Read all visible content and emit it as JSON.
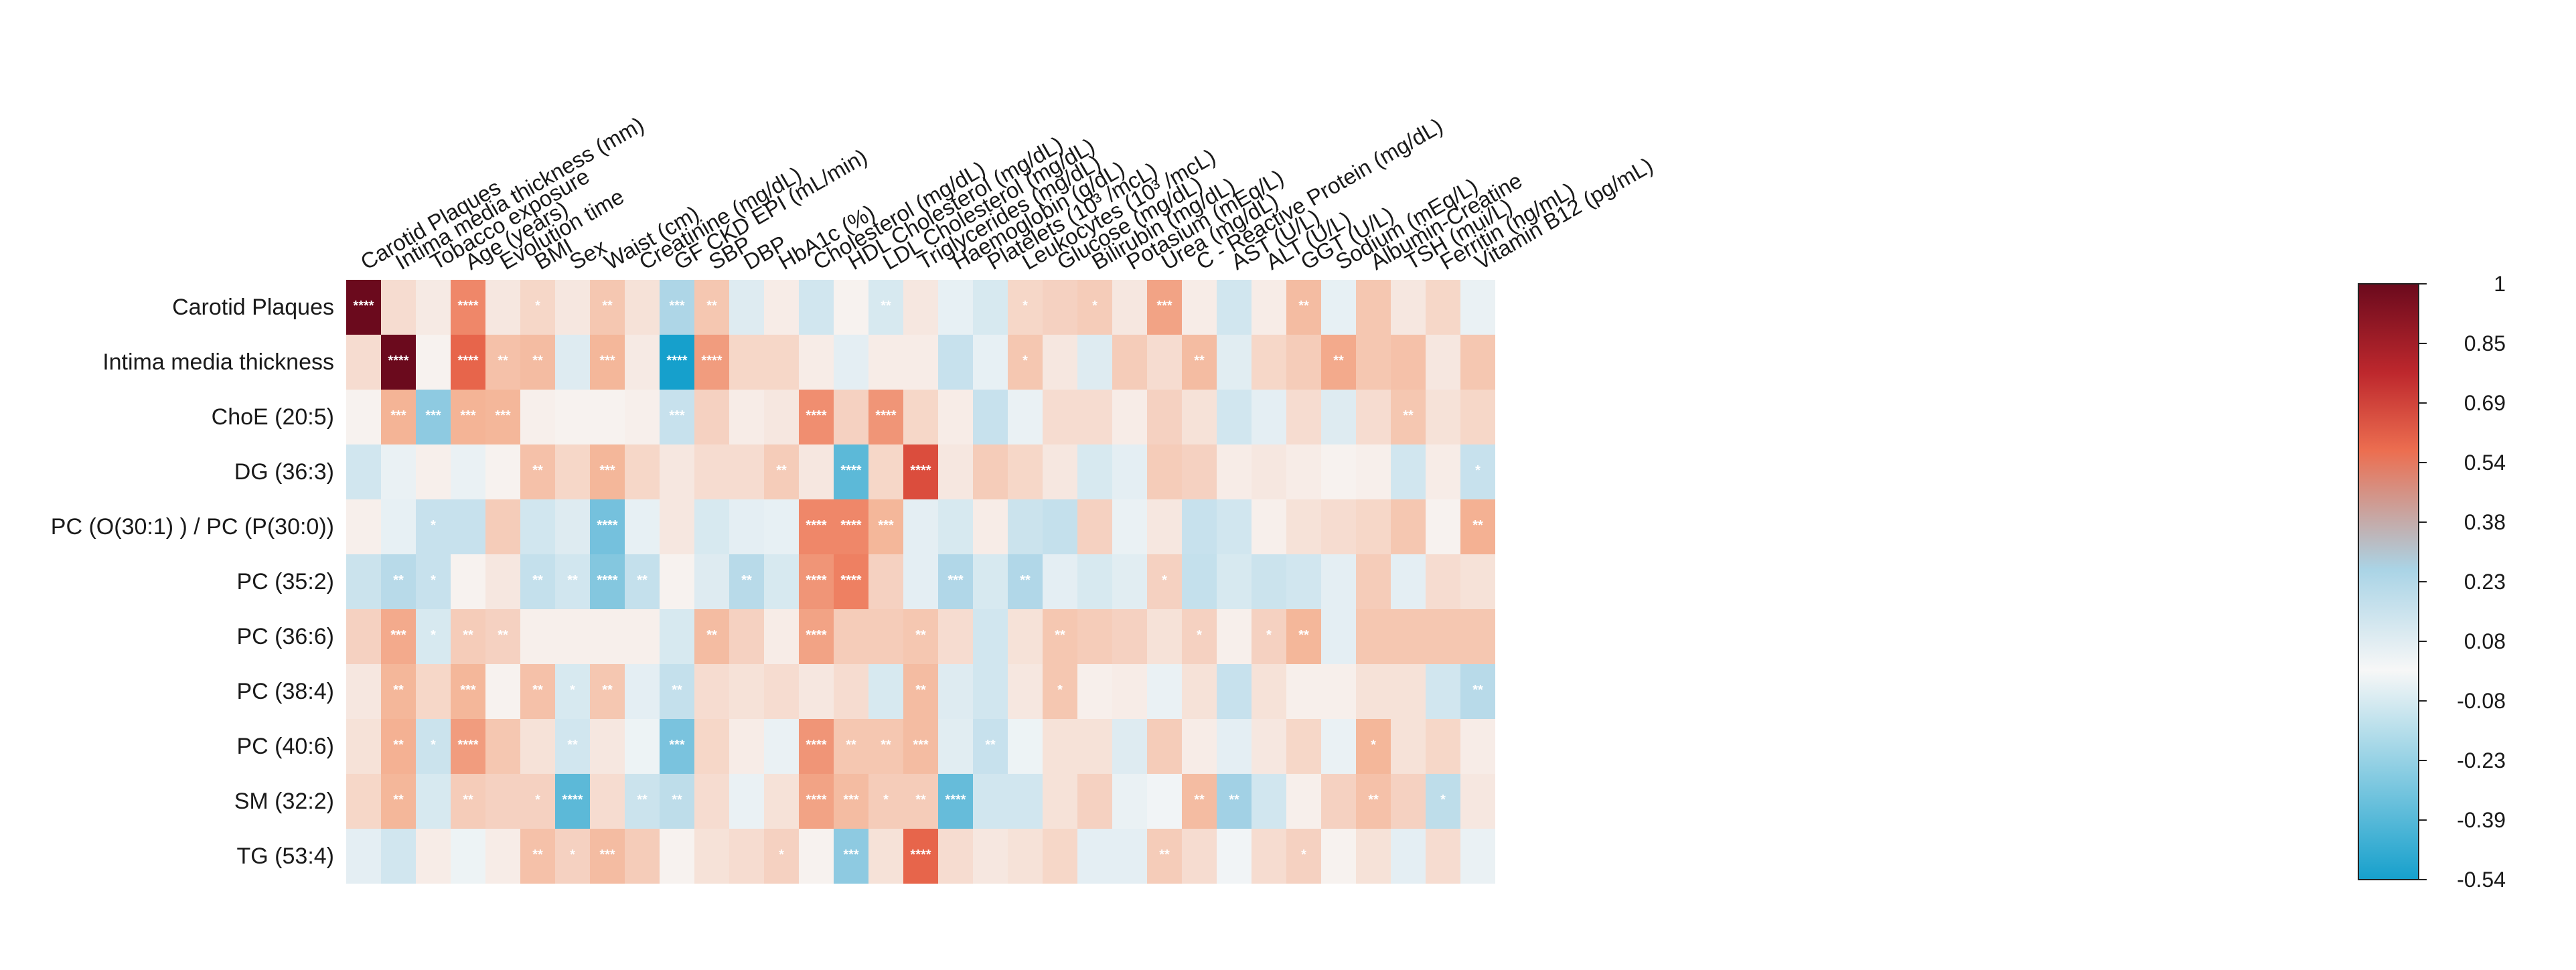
{
  "chart_data": {
    "type": "heatmap",
    "title": "",
    "xlabel": "",
    "ylabel": "",
    "color_scale": {
      "min": -0.54,
      "max": 1,
      "negative_color": "#16a0cc",
      "mid_color": "#f7f7f7",
      "positive_color": "#6b0a1d",
      "ticks": [
        "1",
        "0.85",
        "0.69",
        "0.54",
        "0.38",
        "0.23",
        "0.08",
        "-0.08",
        "-0.23",
        "-0.39",
        "-0.54"
      ]
    },
    "legend_placement": "right",
    "rows": [
      "Carotid Plaques",
      "Intima media thickness",
      "ChoE (20:5)",
      "DG (36:3)",
      "PC (O(30:1) ) / PC (P(30:0))",
      "PC (35:2)",
      "PC (36:6)",
      "PC (38:4)",
      "PC (40:6)",
      "SM (32:2)",
      "TG (53:4)"
    ],
    "columns": [
      "Carotid Plaques",
      "Intima media thickness (mm)",
      "Tobacco exposure",
      "Age (years)",
      "Evolution time",
      "BMI",
      "Sex",
      "Waist (cm)",
      "Creatinine (mg/dL)",
      "GF CKD EPI (mL/min)",
      "SBP",
      "DBP",
      "HbA1c (%)",
      "Cholesterol (mg/dL)",
      "HDL Cholesterol (mg/dL)",
      "LDL Cholesterol (mg/dL)",
      "Triglycerides (mg/dL)",
      "Haemoglobin (g/dL)",
      "Platelets (10³ /mcL)",
      "Leukocytes (10³ /mcL)",
      "Glucose (mg/dL)",
      "Bilirubin (mg/dL)",
      "Potasium (mEq/L)",
      "Urea (mg/dL)",
      "C - Reactive Protein (mg/dL)",
      "AST (U/L)",
      "ALT (U/L)",
      "GGT (U/L)",
      "Sodium (mEq/L)",
      "Albumin-Creatine",
      "TSH (mui/L)",
      "Ferritin (ng/mL)",
      "Vitamin B12 (pg/mL)"
    ],
    "values": [
      [
        1.0,
        0.1,
        0.05,
        0.38,
        0.06,
        0.12,
        0.06,
        0.18,
        0.08,
        -0.23,
        0.18,
        -0.08,
        0.04,
        -0.12,
        0.02,
        -0.1,
        0.06,
        -0.05,
        -0.1,
        0.12,
        0.14,
        0.16,
        0.06,
        0.3,
        0.04,
        -0.12,
        0.04,
        0.22,
        -0.05,
        0.18,
        0.06,
        0.12,
        -0.04
      ],
      [
        0.1,
        1.0,
        0.02,
        0.48,
        0.2,
        0.22,
        -0.08,
        0.24,
        0.05,
        -0.54,
        0.32,
        0.12,
        0.12,
        0.04,
        -0.06,
        0.04,
        0.04,
        -0.15,
        -0.05,
        0.18,
        0.06,
        -0.08,
        0.16,
        0.1,
        0.22,
        -0.07,
        0.12,
        0.16,
        0.28,
        0.18,
        0.2,
        0.06,
        0.18
      ],
      [
        0.02,
        0.25,
        -0.3,
        0.25,
        0.24,
        0.03,
        0.02,
        0.02,
        0.03,
        -0.15,
        0.14,
        0.04,
        0.06,
        0.36,
        0.14,
        0.34,
        0.12,
        0.04,
        -0.15,
        -0.04,
        0.1,
        0.1,
        0.04,
        0.14,
        0.08,
        -0.12,
        -0.06,
        0.1,
        -0.08,
        0.1,
        0.18,
        0.08,
        0.12
      ],
      [
        -0.12,
        -0.04,
        0.03,
        -0.04,
        0.02,
        0.2,
        0.12,
        0.24,
        0.12,
        0.06,
        0.1,
        0.1,
        0.16,
        0.06,
        -0.4,
        0.12,
        0.56,
        0.06,
        0.16,
        0.12,
        0.06,
        -0.1,
        -0.06,
        0.16,
        0.14,
        0.04,
        0.06,
        0.04,
        0.02,
        0.03,
        -0.12,
        0.04,
        -0.15
      ],
      [
        0.03,
        -0.05,
        -0.15,
        -0.15,
        0.16,
        -0.12,
        -0.08,
        -0.35,
        -0.05,
        0.06,
        -0.1,
        -0.06,
        -0.05,
        0.38,
        0.38,
        0.24,
        -0.06,
        -0.1,
        0.04,
        -0.14,
        -0.16,
        0.14,
        -0.04,
        0.06,
        -0.15,
        -0.12,
        0.03,
        0.08,
        0.1,
        0.12,
        0.18,
        0.02,
        0.26
      ],
      [
        -0.14,
        -0.2,
        -0.15,
        0.02,
        0.06,
        -0.16,
        -0.12,
        -0.32,
        -0.16,
        0.02,
        -0.08,
        -0.2,
        -0.1,
        0.34,
        0.4,
        0.14,
        -0.06,
        -0.22,
        -0.1,
        -0.22,
        -0.06,
        -0.1,
        -0.07,
        0.14,
        -0.16,
        -0.1,
        -0.14,
        -0.12,
        -0.06,
        0.16,
        -0.06,
        0.1,
        0.08
      ],
      [
        0.14,
        0.28,
        -0.1,
        0.16,
        0.14,
        0.03,
        0.03,
        0.03,
        0.03,
        -0.1,
        0.22,
        0.14,
        0.04,
        0.3,
        0.16,
        0.16,
        0.18,
        0.1,
        -0.12,
        0.08,
        0.18,
        0.16,
        0.14,
        0.08,
        0.14,
        0.03,
        0.14,
        0.24,
        -0.06,
        0.18,
        0.18,
        0.18,
        0.18
      ],
      [
        0.06,
        0.24,
        0.12,
        0.24,
        0.02,
        0.2,
        -0.1,
        0.18,
        -0.06,
        -0.16,
        0.1,
        0.08,
        0.1,
        0.06,
        0.1,
        -0.1,
        0.22,
        -0.08,
        -0.12,
        0.06,
        0.18,
        0.03,
        0.04,
        -0.04,
        0.08,
        -0.15,
        0.08,
        0.03,
        0.03,
        0.08,
        0.08,
        -0.12,
        -0.2
      ],
      [
        0.08,
        0.26,
        -0.14,
        0.32,
        0.18,
        0.08,
        -0.12,
        0.06,
        -0.03,
        -0.34,
        0.12,
        0.04,
        -0.04,
        0.34,
        0.18,
        0.18,
        0.22,
        -0.07,
        -0.15,
        -0.03,
        0.08,
        0.08,
        -0.08,
        0.16,
        0.04,
        -0.06,
        0.06,
        0.12,
        -0.04,
        0.24,
        0.08,
        0.12,
        0.04
      ],
      [
        0.12,
        0.24,
        -0.1,
        0.16,
        0.14,
        0.14,
        -0.4,
        0.1,
        -0.14,
        -0.18,
        0.1,
        -0.04,
        0.08,
        0.3,
        0.22,
        0.16,
        0.16,
        -0.38,
        -0.12,
        -0.12,
        0.08,
        0.14,
        -0.04,
        -0.02,
        0.22,
        -0.26,
        -0.12,
        0.03,
        0.14,
        0.2,
        0.14,
        -0.18,
        0.06
      ],
      [
        -0.06,
        -0.12,
        0.04,
        -0.03,
        0.04,
        0.2,
        0.14,
        0.22,
        0.16,
        0.02,
        0.08,
        0.1,
        0.14,
        0.02,
        -0.3,
        0.08,
        0.48,
        0.1,
        0.06,
        0.08,
        0.12,
        -0.06,
        -0.06,
        0.16,
        0.1,
        -0.02,
        0.1,
        0.14,
        0.02,
        0.08,
        -0.06,
        0.1,
        -0.04
      ]
    ],
    "significance": [
      [
        "****",
        "",
        "",
        "****",
        "",
        "*",
        "",
        "**",
        "",
        "***",
        "**",
        "",
        "",
        "",
        "",
        "**",
        "",
        "",
        "",
        "*",
        "",
        "*",
        "",
        "***",
        "",
        "",
        "",
        "**",
        "",
        "",
        "",
        "",
        ""
      ],
      [
        "",
        "****",
        "",
        "****",
        "**",
        "**",
        "",
        "***",
        "",
        "****",
        "****",
        "",
        "",
        "",
        "",
        "",
        "",
        "",
        "",
        "*",
        "",
        "",
        "",
        "",
        "**",
        "",
        "",
        "",
        "**",
        "",
        "",
        "",
        ""
      ],
      [
        "",
        "***",
        "***",
        "***",
        "***",
        "",
        "",
        "",
        "",
        "***",
        "",
        "",
        "",
        "****",
        "",
        "****",
        "",
        "",
        "",
        "",
        "",
        "",
        "",
        "",
        "",
        "",
        "",
        "",
        "",
        "",
        "**",
        "",
        ""
      ],
      [
        "",
        "",
        "",
        "",
        "",
        "**",
        "",
        "***",
        "",
        "",
        "",
        "",
        "**",
        "",
        "****",
        "",
        "****",
        "",
        "",
        "",
        "",
        "",
        "",
        "",
        "",
        "",
        "",
        "",
        "",
        "",
        "",
        "",
        "*"
      ],
      [
        "",
        "",
        "*",
        "",
        "",
        "",
        "",
        "****",
        "",
        "",
        "",
        "",
        "",
        "****",
        "****",
        "***",
        "",
        "",
        "",
        "",
        "",
        "",
        "",
        "",
        "",
        "",
        "",
        "",
        "",
        "",
        "",
        "",
        "**"
      ],
      [
        "",
        "**",
        "*",
        "",
        "",
        "**",
        "**",
        "****",
        "**",
        "",
        "",
        "**",
        "",
        "****",
        "****",
        "",
        "",
        "***",
        "",
        "**",
        "",
        "",
        "",
        "*",
        "",
        "",
        "",
        "",
        "",
        "",
        "",
        "",
        ""
      ],
      [
        "",
        "***",
        "*",
        "**",
        "**",
        "",
        "",
        "",
        "",
        "",
        "**",
        "",
        "",
        "****",
        "",
        "",
        "**",
        "",
        "",
        "",
        "**",
        "",
        "",
        "",
        "*",
        "",
        "*",
        "**",
        "",
        "",
        "",
        "",
        ""
      ],
      [
        "",
        "**",
        "",
        "***",
        "",
        "**",
        "*",
        "**",
        "",
        "**",
        "",
        "",
        "",
        "",
        "",
        "",
        "**",
        "",
        "",
        "",
        "*",
        "",
        "",
        "",
        "",
        "",
        "",
        "",
        "",
        "",
        "",
        "",
        "**"
      ],
      [
        "",
        "**",
        "*",
        "****",
        "",
        "",
        "**",
        "",
        "",
        "***",
        "",
        "",
        "",
        "****",
        "**",
        "**",
        "***",
        "",
        "**",
        "",
        "",
        "",
        "",
        "",
        "",
        "",
        "",
        "",
        "",
        "*",
        "",
        "",
        ""
      ],
      [
        "",
        "**",
        "",
        "**",
        "",
        "*",
        "****",
        "",
        "**",
        "**",
        "",
        "",
        "",
        "****",
        "***",
        "*",
        "**",
        "****",
        "",
        "",
        "",
        "",
        "",
        "",
        "**",
        "**",
        "",
        "",
        "",
        "**",
        "",
        "*",
        ""
      ],
      [
        "",
        "",
        "",
        "",
        "",
        "**",
        "*",
        "***",
        "",
        "",
        "",
        "",
        "*",
        "",
        "***",
        "",
        "****",
        "",
        "",
        "",
        "",
        "",
        "",
        "**",
        "",
        "",
        "",
        "*",
        "",
        "",
        "",
        "",
        ""
      ]
    ]
  }
}
